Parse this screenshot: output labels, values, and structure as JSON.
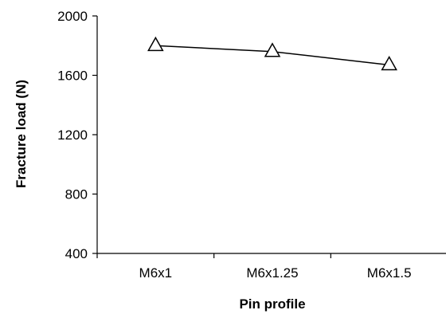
{
  "chart_data": {
    "type": "line",
    "title": "",
    "xlabel": "Pin profile",
    "ylabel": "Fracture load (N)",
    "categories": [
      "M6x1",
      "M6x1.25",
      "M6x1.5"
    ],
    "series": [
      {
        "values": [
          1800,
          1760,
          1670
        ],
        "marker": "triangle-open",
        "color": "#000000"
      }
    ],
    "ylim": [
      400,
      2000
    ],
    "yticks": [
      400,
      800,
      1200,
      1600,
      2000
    ],
    "grid": false,
    "legend": "none"
  }
}
